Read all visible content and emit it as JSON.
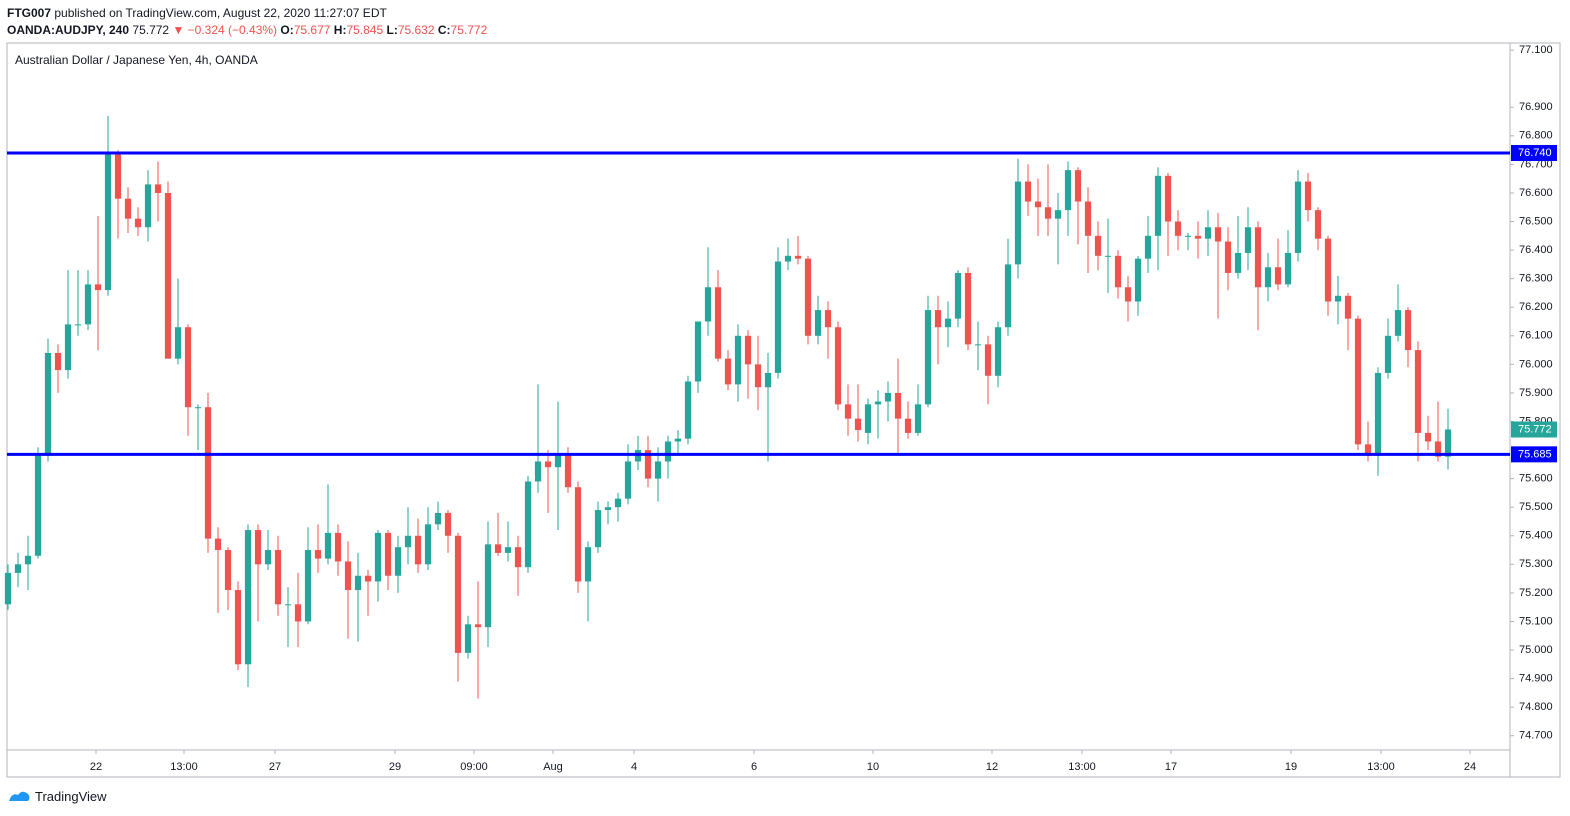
{
  "header": {
    "author": "FTG007",
    "published": "published on TradingView.com, August 22, 2020 11:27:07 EDT",
    "symbol": "OANDA:AUDJPY, 240",
    "price": "75.772",
    "change": "▼ −0.324 (−0.43%)",
    "o_label": "O:",
    "o_value": "75.677",
    "h_label": "H:",
    "h_value": "75.845",
    "l_label": "L:",
    "l_value": "75.632",
    "c_label": "C:",
    "c_value": "75.772"
  },
  "footer": {
    "brand": "TradingView"
  },
  "chart_data": {
    "type": "candlestick",
    "title": "Australian Dollar / Japanese Yen, 4h, OANDA",
    "up_color": "#26a69a",
    "down_color": "#ef5350",
    "grid": false,
    "ylim": [
      74.65,
      77.125
    ],
    "yticks": [
      {
        "value": 77.1,
        "label": "77.100"
      },
      {
        "value": 76.9,
        "label": "76.900"
      },
      {
        "value": 76.8,
        "label": "76.800"
      },
      {
        "value": 76.7,
        "label": "76.700"
      },
      {
        "value": 76.6,
        "label": "76.600"
      },
      {
        "value": 76.5,
        "label": "76.500"
      },
      {
        "value": 76.4,
        "label": "76.400"
      },
      {
        "value": 76.3,
        "label": "76.300"
      },
      {
        "value": 76.2,
        "label": "76.200"
      },
      {
        "value": 76.1,
        "label": "76.100"
      },
      {
        "value": 76.0,
        "label": "76.000"
      },
      {
        "value": 75.9,
        "label": "75.900"
      },
      {
        "value": 75.8,
        "label": "75.800"
      },
      {
        "value": 75.6,
        "label": "75.600"
      },
      {
        "value": 75.5,
        "label": "75.500"
      },
      {
        "value": 75.4,
        "label": "75.400"
      },
      {
        "value": 75.3,
        "label": "75.300"
      },
      {
        "value": 75.2,
        "label": "75.200"
      },
      {
        "value": 75.1,
        "label": "75.100"
      },
      {
        "value": 75.0,
        "label": "75.000"
      },
      {
        "value": 74.9,
        "label": "74.900"
      },
      {
        "value": 74.8,
        "label": "74.800"
      },
      {
        "value": 74.7,
        "label": "74.700"
      }
    ],
    "xlim": [
      -0.1,
      150.2
    ],
    "xticks": [
      {
        "value": 8.8,
        "label": "22"
      },
      {
        "value": 17.6,
        "label": "13:00"
      },
      {
        "value": 26.7,
        "label": "27"
      },
      {
        "value": 38.7,
        "label": "29"
      },
      {
        "value": 46.6,
        "label": "09:00"
      },
      {
        "value": 54.5,
        "label": "Aug"
      },
      {
        "value": 62.6,
        "label": "4"
      },
      {
        "value": 74.6,
        "label": "6"
      },
      {
        "value": 86.5,
        "label": "10"
      },
      {
        "value": 98.4,
        "label": "12"
      },
      {
        "value": 107.4,
        "label": "13:00"
      },
      {
        "value": 116.3,
        "label": "17"
      },
      {
        "value": 128.3,
        "label": "19"
      },
      {
        "value": 137.3,
        "label": "13:00"
      },
      {
        "value": 146.2,
        "label": "24"
      }
    ],
    "levels": [
      {
        "value": 76.74,
        "label": "76.740",
        "color": "#0000ff"
      },
      {
        "value": 75.685,
        "label": "75.685",
        "color": "#0000ff"
      }
    ],
    "last_price_label": "75.772",
    "ohlc": [
      [
        75.16,
        75.3,
        75.14,
        75.27
      ],
      [
        75.27,
        75.34,
        75.22,
        75.3
      ],
      [
        75.3,
        75.4,
        75.21,
        75.33
      ],
      [
        75.33,
        75.71,
        75.32,
        75.68
      ],
      [
        75.68,
        76.09,
        75.66,
        76.04
      ],
      [
        76.04,
        76.07,
        75.9,
        75.98
      ],
      [
        75.98,
        76.33,
        75.95,
        76.14
      ],
      [
        76.14,
        76.33,
        76.1,
        76.14
      ],
      [
        76.14,
        76.33,
        76.12,
        76.28
      ],
      [
        76.28,
        76.52,
        76.05,
        76.26
      ],
      [
        76.26,
        76.87,
        76.24,
        76.74
      ],
      [
        76.74,
        76.75,
        76.44,
        76.58
      ],
      [
        76.58,
        76.62,
        76.46,
        76.51
      ],
      [
        76.51,
        76.55,
        76.45,
        76.48
      ],
      [
        76.48,
        76.68,
        76.43,
        76.63
      ],
      [
        76.63,
        76.71,
        76.5,
        76.6
      ],
      [
        76.6,
        76.64,
        76.02,
        76.02
      ],
      [
        76.02,
        76.3,
        76.0,
        76.13
      ],
      [
        76.13,
        76.14,
        75.75,
        75.85
      ],
      [
        75.85,
        75.86,
        75.7,
        75.85
      ],
      [
        75.85,
        75.9,
        75.34,
        75.39
      ],
      [
        75.39,
        75.43,
        75.13,
        75.35
      ],
      [
        75.35,
        75.36,
        75.14,
        75.21
      ],
      [
        75.21,
        75.24,
        74.93,
        74.95
      ],
      [
        74.95,
        75.44,
        74.87,
        75.42
      ],
      [
        75.42,
        75.44,
        75.1,
        75.3
      ],
      [
        75.3,
        75.42,
        75.28,
        75.35
      ],
      [
        75.35,
        75.4,
        75.12,
        75.16
      ],
      [
        75.16,
        75.22,
        75.01,
        75.16
      ],
      [
        75.16,
        75.27,
        75.01,
        75.1
      ],
      [
        75.1,
        75.43,
        75.09,
        75.35
      ],
      [
        75.35,
        75.44,
        75.27,
        75.32
      ],
      [
        75.32,
        75.58,
        75.3,
        75.41
      ],
      [
        75.41,
        75.44,
        75.26,
        75.31
      ],
      [
        75.31,
        75.38,
        75.04,
        75.21
      ],
      [
        75.21,
        75.34,
        75.03,
        75.26
      ],
      [
        75.26,
        75.28,
        75.12,
        75.24
      ],
      [
        75.24,
        75.42,
        75.17,
        75.41
      ],
      [
        75.41,
        75.42,
        75.21,
        75.26
      ],
      [
        75.26,
        75.4,
        75.2,
        75.36
      ],
      [
        75.36,
        75.5,
        75.3,
        75.4
      ],
      [
        75.4,
        75.46,
        75.27,
        75.3
      ],
      [
        75.3,
        75.5,
        75.28,
        75.44
      ],
      [
        75.44,
        75.52,
        75.42,
        75.48
      ],
      [
        75.48,
        75.49,
        75.34,
        75.4
      ],
      [
        75.4,
        75.41,
        74.89,
        74.99
      ],
      [
        74.99,
        75.12,
        74.97,
        75.09
      ],
      [
        75.09,
        75.24,
        74.83,
        75.08
      ],
      [
        75.08,
        75.45,
        75.01,
        75.37
      ],
      [
        75.37,
        75.48,
        75.33,
        75.34
      ],
      [
        75.34,
        75.45,
        75.31,
        75.36
      ],
      [
        75.36,
        75.4,
        75.19,
        75.29
      ],
      [
        75.29,
        75.61,
        75.27,
        75.59
      ],
      [
        75.59,
        75.93,
        75.55,
        75.66
      ],
      [
        75.66,
        75.7,
        75.48,
        75.64
      ],
      [
        75.64,
        75.87,
        75.42,
        75.68
      ],
      [
        75.68,
        75.71,
        75.55,
        75.57
      ],
      [
        75.57,
        75.59,
        75.2,
        75.24
      ],
      [
        75.24,
        75.38,
        75.1,
        75.36
      ],
      [
        75.36,
        75.52,
        75.34,
        75.49
      ],
      [
        75.49,
        75.52,
        75.44,
        75.5
      ],
      [
        75.5,
        75.55,
        75.45,
        75.53
      ],
      [
        75.53,
        75.72,
        75.51,
        75.66
      ],
      [
        75.66,
        75.75,
        75.63,
        75.7
      ],
      [
        75.7,
        75.75,
        75.57,
        75.6
      ],
      [
        75.6,
        75.71,
        75.52,
        75.66
      ],
      [
        75.66,
        75.75,
        75.6,
        75.73
      ],
      [
        75.73,
        75.77,
        75.68,
        75.74
      ],
      [
        75.74,
        75.96,
        75.72,
        75.94
      ],
      [
        75.94,
        76.15,
        75.9,
        76.15
      ],
      [
        76.15,
        76.41,
        76.1,
        76.27
      ],
      [
        76.27,
        76.33,
        76.01,
        76.02
      ],
      [
        76.02,
        76.05,
        75.91,
        75.93
      ],
      [
        75.93,
        76.14,
        75.87,
        76.1
      ],
      [
        76.1,
        76.12,
        75.88,
        76.0
      ],
      [
        76.0,
        76.1,
        75.84,
        75.92
      ],
      [
        75.92,
        76.04,
        75.66,
        75.97
      ],
      [
        75.97,
        76.41,
        75.95,
        76.36
      ],
      [
        76.36,
        76.44,
        76.33,
        76.38
      ],
      [
        76.38,
        76.45,
        76.35,
        76.37
      ],
      [
        76.37,
        76.38,
        76.07,
        76.1
      ],
      [
        76.1,
        76.24,
        76.07,
        76.19
      ],
      [
        76.19,
        76.22,
        76.02,
        76.13
      ],
      [
        76.13,
        76.15,
        75.84,
        75.86
      ],
      [
        75.86,
        75.93,
        75.75,
        75.81
      ],
      [
        75.81,
        75.93,
        75.73,
        75.77
      ],
      [
        75.76,
        75.88,
        75.72,
        75.86
      ],
      [
        75.86,
        75.91,
        75.74,
        75.87
      ],
      [
        75.87,
        75.94,
        75.8,
        75.9
      ],
      [
        75.9,
        76.02,
        75.69,
        75.81
      ],
      [
        75.81,
        75.87,
        75.74,
        75.76
      ],
      [
        75.76,
        75.93,
        75.75,
        75.86
      ],
      [
        75.86,
        76.24,
        75.85,
        76.19
      ],
      [
        76.19,
        76.24,
        76.0,
        76.13
      ],
      [
        76.13,
        76.22,
        76.06,
        76.16
      ],
      [
        76.16,
        76.33,
        76.13,
        76.32
      ],
      [
        76.32,
        76.34,
        76.05,
        76.07
      ],
      [
        76.07,
        76.15,
        75.98,
        76.07
      ],
      [
        76.07,
        76.1,
        75.86,
        75.96
      ],
      [
        75.96,
        76.15,
        75.92,
        76.13
      ],
      [
        76.13,
        76.44,
        76.1,
        76.35
      ],
      [
        76.35,
        76.72,
        76.3,
        76.64
      ],
      [
        76.64,
        76.7,
        76.52,
        76.57
      ],
      [
        76.57,
        76.65,
        76.45,
        76.55
      ],
      [
        76.55,
        76.7,
        76.45,
        76.51
      ],
      [
        76.51,
        76.6,
        76.35,
        76.54
      ],
      [
        76.54,
        76.71,
        76.45,
        76.68
      ],
      [
        76.68,
        76.69,
        76.42,
        76.57
      ],
      [
        76.57,
        76.62,
        76.32,
        76.45
      ],
      [
        76.45,
        76.5,
        76.33,
        76.38
      ],
      [
        76.38,
        76.51,
        76.25,
        76.38
      ],
      [
        76.38,
        76.4,
        76.23,
        76.27
      ],
      [
        76.27,
        76.31,
        76.15,
        76.22
      ],
      [
        76.22,
        76.38,
        76.17,
        76.37
      ],
      [
        76.37,
        76.52,
        76.32,
        76.45
      ],
      [
        76.45,
        76.69,
        76.33,
        76.66
      ],
      [
        76.66,
        76.67,
        76.38,
        76.5
      ],
      [
        76.5,
        76.54,
        76.4,
        76.45
      ],
      [
        76.45,
        76.46,
        76.4,
        76.45
      ],
      [
        76.45,
        76.5,
        76.37,
        76.44
      ],
      [
        76.44,
        76.54,
        76.38,
        76.48
      ],
      [
        76.48,
        76.53,
        76.16,
        76.43
      ],
      [
        76.43,
        76.48,
        76.26,
        76.32
      ],
      [
        76.32,
        76.52,
        76.3,
        76.39
      ],
      [
        76.39,
        76.55,
        76.33,
        76.48
      ],
      [
        76.48,
        76.5,
        76.12,
        76.27
      ],
      [
        76.27,
        76.39,
        76.22,
        76.34
      ],
      [
        76.34,
        76.44,
        76.26,
        76.28
      ],
      [
        76.28,
        76.47,
        76.27,
        76.39
      ],
      [
        76.39,
        76.68,
        76.36,
        76.64
      ],
      [
        76.64,
        76.67,
        76.5,
        76.54
      ],
      [
        76.54,
        76.55,
        76.4,
        76.44
      ],
      [
        76.44,
        76.45,
        76.17,
        76.22
      ],
      [
        76.22,
        76.31,
        76.14,
        76.24
      ],
      [
        76.24,
        76.25,
        76.05,
        76.16
      ],
      [
        76.16,
        76.17,
        75.7,
        75.72
      ],
      [
        75.72,
        75.8,
        75.66,
        75.68
      ],
      [
        75.68,
        75.99,
        75.61,
        75.97
      ],
      [
        75.97,
        76.16,
        75.95,
        76.1
      ],
      [
        76.1,
        76.28,
        76.08,
        76.19
      ],
      [
        76.19,
        76.2,
        75.99,
        76.05
      ],
      [
        76.05,
        76.08,
        75.66,
        75.76
      ],
      [
        75.76,
        75.82,
        75.7,
        75.73
      ],
      [
        75.73,
        75.87,
        75.66,
        75.677
      ],
      [
        75.677,
        75.845,
        75.632,
        75.772
      ]
    ]
  }
}
